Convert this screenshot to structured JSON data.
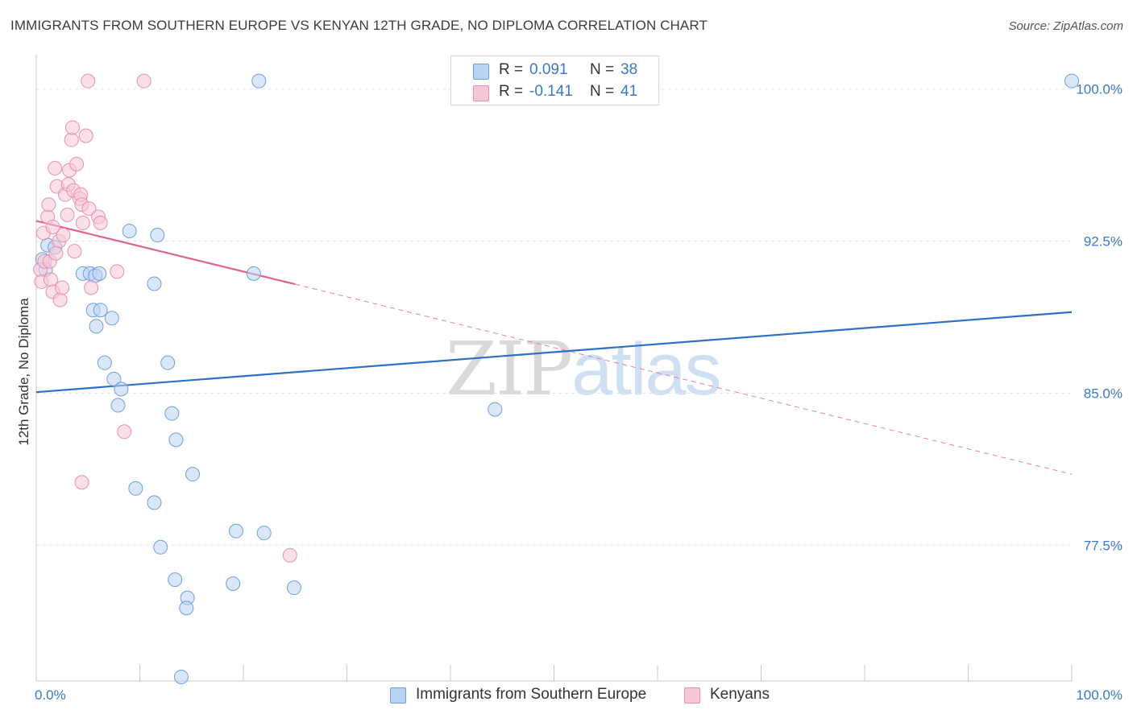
{
  "title": "IMMIGRANTS FROM SOUTHERN EUROPE VS KENYAN 12TH GRADE, NO DIPLOMA CORRELATION CHART",
  "source": "Source: ZipAtlas.com",
  "watermark": {
    "zip": "ZIP",
    "atlas": "atlas"
  },
  "colors": {
    "blue_fill": "#b9d3f4",
    "blue_stroke": "#6fa0dc",
    "blue_line": "#2f6fc6",
    "pink_fill": "#f8c6d6",
    "pink_stroke": "#e592ae",
    "pink_line": "#e0628d",
    "axis_text": "#3a78c9",
    "grid": "#e3e3e3"
  },
  "legend": {
    "rows": [
      {
        "r_label": "R =",
        "r_value": "0.091",
        "n_label": "N =",
        "n_value": "38"
      },
      {
        "r_label": "R =",
        "r_value": "-0.141",
        "n_label": "N =",
        "n_value": "41"
      }
    ]
  },
  "bottom_legend": [
    "Immigrants from Southern Europe",
    "Kenyans"
  ],
  "chart_data": {
    "type": "scatter",
    "title": "IMMIGRANTS FROM SOUTHERN EUROPE VS KENYAN 12TH GRADE, NO DIPLOMA CORRELATION CHART",
    "xlabel": "",
    "ylabel": "12th Grade, No Diploma",
    "xlim": [
      0,
      100
    ],
    "ylim": [
      70.8,
      101.3
    ],
    "x_tick_labels": [
      "0.0%",
      "100.0%"
    ],
    "y_ticks": [
      77.5,
      85.0,
      92.5,
      100.0
    ],
    "y_tick_labels": [
      "77.5%",
      "85.0%",
      "92.5%",
      "100.0%"
    ],
    "grid": true,
    "legend_position": "top-center",
    "series": [
      {
        "name": "Immigrants from Southern Europe",
        "R": 0.091,
        "N": 38,
        "trend": {
          "x0": 0,
          "y0": 85.05,
          "x1": 100,
          "y1": 89.0,
          "dashed_from": null
        },
        "points": [
          [
            0.6,
            91.6
          ],
          [
            0.9,
            91.1
          ],
          [
            1.1,
            92.3
          ],
          [
            1.8,
            92.2
          ],
          [
            4.5,
            90.9
          ],
          [
            5.2,
            90.9
          ],
          [
            5.7,
            90.8
          ],
          [
            6.1,
            90.9
          ],
          [
            5.5,
            89.1
          ],
          [
            6.2,
            89.1
          ],
          [
            5.8,
            88.3
          ],
          [
            7.3,
            88.7
          ],
          [
            9.0,
            93.0
          ],
          [
            11.7,
            92.8
          ],
          [
            11.4,
            90.4
          ],
          [
            21.0,
            90.9
          ],
          [
            6.6,
            86.5
          ],
          [
            7.5,
            85.7
          ],
          [
            8.2,
            85.2
          ],
          [
            7.9,
            84.4
          ],
          [
            12.7,
            86.5
          ],
          [
            13.1,
            84.0
          ],
          [
            13.5,
            82.7
          ],
          [
            15.1,
            81.0
          ],
          [
            9.6,
            80.3
          ],
          [
            11.4,
            79.6
          ],
          [
            12.0,
            77.4
          ],
          [
            13.4,
            75.8
          ],
          [
            14.6,
            74.9
          ],
          [
            14.5,
            74.4
          ],
          [
            19.3,
            78.2
          ],
          [
            22.0,
            78.1
          ],
          [
            19.0,
            75.6
          ],
          [
            24.9,
            75.4
          ],
          [
            14.0,
            71.0
          ],
          [
            21.5,
            100.4
          ],
          [
            44.3,
            84.2
          ],
          [
            100.0,
            100.4
          ]
        ]
      },
      {
        "name": "Kenyans",
        "R": -0.141,
        "N": 41,
        "trend": {
          "x0": 0,
          "y0": 93.5,
          "x1": 100,
          "y1": 81.0,
          "dashed_from": 25.0
        },
        "points": [
          [
            0.4,
            91.1
          ],
          [
            0.5,
            90.5
          ],
          [
            0.8,
            91.5
          ],
          [
            0.7,
            92.9
          ],
          [
            1.1,
            93.7
          ],
          [
            1.2,
            94.3
          ],
          [
            1.3,
            91.5
          ],
          [
            1.4,
            90.6
          ],
          [
            1.6,
            90.0
          ],
          [
            1.8,
            96.1
          ],
          [
            2.0,
            95.2
          ],
          [
            2.2,
            92.5
          ],
          [
            2.3,
            89.6
          ],
          [
            2.5,
            90.2
          ],
          [
            2.6,
            92.8
          ],
          [
            2.8,
            94.8
          ],
          [
            3.0,
            93.8
          ],
          [
            3.1,
            95.3
          ],
          [
            3.2,
            96.0
          ],
          [
            3.4,
            97.5
          ],
          [
            3.5,
            98.1
          ],
          [
            3.6,
            95.0
          ],
          [
            3.7,
            92.0
          ],
          [
            3.9,
            96.3
          ],
          [
            4.2,
            94.6
          ],
          [
            4.3,
            94.8
          ],
          [
            4.4,
            94.3
          ],
          [
            4.5,
            93.4
          ],
          [
            4.8,
            97.7
          ],
          [
            5.1,
            94.1
          ],
          [
            5.3,
            90.2
          ],
          [
            6.0,
            93.7
          ],
          [
            6.2,
            93.4
          ],
          [
            7.8,
            91.0
          ],
          [
            1.6,
            93.2
          ],
          [
            1.9,
            91.9
          ],
          [
            8.5,
            83.1
          ],
          [
            4.4,
            80.6
          ],
          [
            5.0,
            100.4
          ],
          [
            10.4,
            100.4
          ],
          [
            24.5,
            77.0
          ]
        ]
      }
    ]
  }
}
